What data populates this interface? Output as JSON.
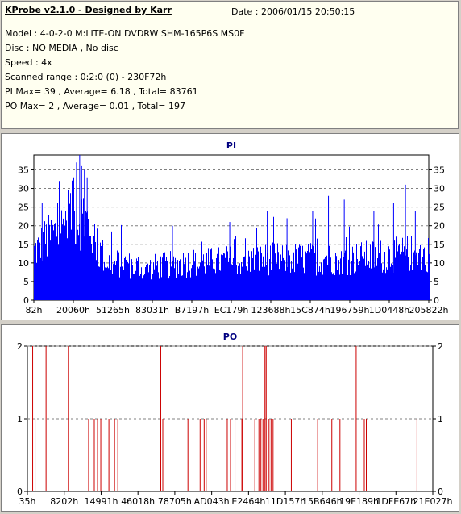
{
  "info": {
    "title": "KProbe v2.1.0 - Designed by Karr",
    "date": "Date : 2006/01/15 20:50:15",
    "lines": [
      "Model : 4-0-2-0 M:LITE-ON DVDRW SHM-165P6S MS0F",
      "Disc : NO MEDIA , No disc",
      "Speed : 4x",
      "Scanned range : 0:2:0 (0) - 230F72h",
      "PI Max= 39 , Average= 6.18 , Total= 83761",
      "PO Max= 2 , Average= 0.01 , Total= 197"
    ]
  },
  "colors": {
    "pi": "#0000ff",
    "po": "#cc0000",
    "title": "#000080"
  },
  "chart_data": [
    {
      "type": "area",
      "title": "PI",
      "ylim": [
        0,
        39
      ],
      "yticks": [
        0,
        5,
        10,
        15,
        20,
        25,
        30,
        35
      ],
      "xticks": [
        "82h",
        "20060h",
        "51265h",
        "83031h",
        "B7197h",
        "EC179h",
        "123688h",
        "15C874h",
        "196759h",
        "1D0448h",
        "205822h"
      ],
      "grid": true,
      "profile": [
        [
          0,
          14
        ],
        [
          0.025,
          17
        ],
        [
          0.05,
          19
        ],
        [
          0.07,
          21
        ],
        [
          0.09,
          25
        ],
        [
          0.115,
          24
        ],
        [
          0.14,
          22
        ],
        [
          0.165,
          14
        ],
        [
          0.19,
          11
        ],
        [
          0.22,
          10.5
        ],
        [
          0.25,
          10
        ],
        [
          0.29,
          9.5
        ],
        [
          0.33,
          10
        ],
        [
          0.37,
          10.5
        ],
        [
          0.4,
          11
        ],
        [
          0.45,
          11
        ],
        [
          0.5,
          11.5
        ],
        [
          0.55,
          11.5
        ],
        [
          0.6,
          12
        ],
        [
          0.65,
          12
        ],
        [
          0.7,
          12
        ],
        [
          0.75,
          12
        ],
        [
          0.8,
          12
        ],
        [
          0.85,
          12.5
        ],
        [
          0.9,
          13
        ],
        [
          0.95,
          13.5
        ],
        [
          1,
          13.5
        ]
      ],
      "peaks": [
        [
          0.115,
          39
        ],
        [
          0.12,
          36
        ],
        [
          0.107,
          37
        ],
        [
          0.127,
          35
        ],
        [
          0.134,
          33
        ],
        [
          0.1,
          33
        ],
        [
          0.745,
          28
        ],
        [
          0.785,
          27
        ],
        [
          0.59,
          24
        ],
        [
          0.94,
          31
        ],
        [
          0.705,
          24
        ],
        [
          0.35,
          20
        ],
        [
          0.495,
          21
        ],
        [
          0.91,
          26
        ],
        [
          0.02,
          26
        ],
        [
          0.86,
          24
        ],
        [
          0.64,
          22
        ],
        [
          0.965,
          24
        ]
      ]
    },
    {
      "type": "bar",
      "title": "PO",
      "ylim": [
        0,
        2
      ],
      "yticks": [
        0,
        1,
        2
      ],
      "xticks": [
        "35h",
        "8202h",
        "14991h",
        "46018h",
        "78705h",
        "AD043h",
        "E2464h",
        "11D157h",
        "15B646h",
        "19E189h",
        "1DFE67h",
        "21E027h"
      ],
      "grid": true,
      "events": [
        [
          0.012,
          2
        ],
        [
          0.018,
          1
        ],
        [
          0.045,
          2
        ],
        [
          0.1,
          2
        ],
        [
          0.15,
          1
        ],
        [
          0.164,
          1
        ],
        [
          0.172,
          1
        ],
        [
          0.18,
          1
        ],
        [
          0.2,
          1
        ],
        [
          0.214,
          1
        ],
        [
          0.222,
          1
        ],
        [
          0.328,
          2
        ],
        [
          0.333,
          1
        ],
        [
          0.395,
          1
        ],
        [
          0.425,
          1
        ],
        [
          0.435,
          1
        ],
        [
          0.44,
          1
        ],
        [
          0.492,
          1
        ],
        [
          0.5,
          1
        ],
        [
          0.511,
          1
        ],
        [
          0.528,
          1
        ],
        [
          0.53,
          2
        ],
        [
          0.56,
          1
        ],
        [
          0.57,
          1
        ],
        [
          0.575,
          1
        ],
        [
          0.58,
          1
        ],
        [
          0.585,
          2
        ],
        [
          0.588,
          2
        ],
        [
          0.595,
          1
        ],
        [
          0.6,
          1
        ],
        [
          0.605,
          1
        ],
        [
          0.65,
          1
        ],
        [
          0.715,
          1
        ],
        [
          0.75,
          1
        ],
        [
          0.77,
          1
        ],
        [
          0.81,
          2
        ],
        [
          0.83,
          1
        ],
        [
          0.835,
          1
        ],
        [
          0.96,
          1
        ]
      ]
    }
  ]
}
